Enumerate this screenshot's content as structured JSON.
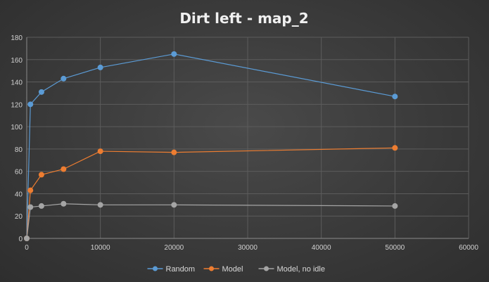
{
  "chart_data": {
    "type": "line",
    "title": "Dirt left - map_2",
    "xlabel": "",
    "ylabel": "",
    "xlim": [
      0,
      60000
    ],
    "ylim": [
      0,
      180
    ],
    "x_ticks": [
      0,
      10000,
      20000,
      30000,
      40000,
      50000,
      60000
    ],
    "y_ticks": [
      0,
      20,
      40,
      60,
      80,
      100,
      120,
      140,
      160,
      180
    ],
    "grid": true,
    "legend_position": "bottom",
    "x": [
      0,
      500,
      2000,
      5000,
      10000,
      20000,
      50000
    ],
    "series": [
      {
        "name": "Random",
        "color": "#5b9bd5",
        "values": [
          0,
          120,
          131,
          143,
          153,
          165,
          127
        ]
      },
      {
        "name": "Model",
        "color": "#ed7d31",
        "values": [
          0,
          43,
          57,
          62,
          78,
          77,
          81
        ]
      },
      {
        "name": "Model, no idle",
        "color": "#a5a5a5",
        "values": [
          0,
          28,
          29,
          31,
          30,
          30,
          29
        ]
      }
    ]
  }
}
